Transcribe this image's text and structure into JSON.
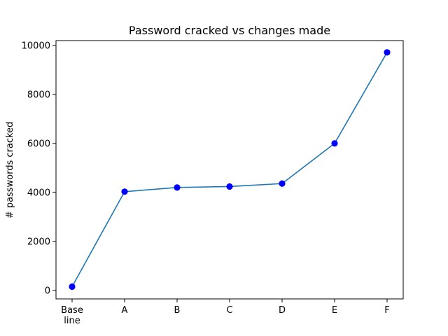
{
  "chart_data": {
    "type": "line",
    "title": "Password cracked vs changes made",
    "xlabel": "",
    "ylabel": "# passwords cracked",
    "categories": [
      "Base\nline",
      "A",
      "B",
      "C",
      "D",
      "E",
      "F"
    ],
    "series": [
      {
        "values": [
          150,
          4030,
          4200,
          4240,
          4360,
          6000,
          9720
        ],
        "color": "#1f77b4",
        "marker_color": "#0000ff"
      }
    ],
    "ylim": [
      -350,
      10200
    ],
    "yticks": [
      0,
      2000,
      4000,
      6000,
      8000,
      10000
    ],
    "grid": false,
    "legend": "none"
  }
}
